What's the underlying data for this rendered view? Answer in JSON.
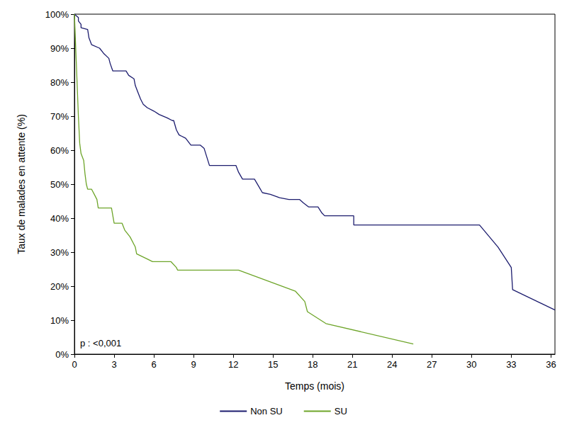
{
  "chart_data": {
    "type": "line",
    "x_label": "Temps (mois)",
    "y_label": "Taux de malades en attente (%)",
    "annotation": "p : <0,001",
    "xlim": [
      0,
      36.3
    ],
    "xticks": [
      0,
      3,
      6,
      9,
      12,
      15,
      18,
      21,
      24,
      27,
      30,
      33,
      36
    ],
    "ylim": [
      0,
      100
    ],
    "yticks": [
      {
        "value": 0,
        "label": "0%"
      },
      {
        "value": 10,
        "label": "10%"
      },
      {
        "value": 20,
        "label": "20%"
      },
      {
        "value": 30,
        "label": "30%"
      },
      {
        "value": 40,
        "label": "40%"
      },
      {
        "value": 50,
        "label": "50%"
      },
      {
        "value": 60,
        "label": "60%"
      },
      {
        "value": 70,
        "label": "70%"
      },
      {
        "value": 80,
        "label": "80%"
      },
      {
        "value": 90,
        "label": "90%"
      },
      {
        "value": 100,
        "label": "100%"
      }
    ],
    "grid": false,
    "legend": "bottom",
    "series": [
      {
        "name": "Non SU",
        "color": "#1c1c6e",
        "x": [
          0,
          0.3,
          0.3,
          0.5,
          0.5,
          1.0,
          1.1,
          1.3,
          1.9,
          2.2,
          2.6,
          2.7,
          2.9,
          3.9,
          4.1,
          4.5,
          4.6,
          4.8,
          5.0,
          5.2,
          5.5,
          6.0,
          6.4,
          7.0,
          7.4,
          7.5,
          7.7,
          7.9,
          8.4,
          8.8,
          9.5,
          9.8,
          10.0,
          10.2,
          12.2,
          12.4,
          12.7,
          13.6,
          13.9,
          14.2,
          14.8,
          15.5,
          16.2,
          17.0,
          17.3,
          17.7,
          18.4,
          18.7,
          18.9,
          21.1,
          21.1,
          30.6,
          32.0,
          33.0,
          33.1,
          36.3
        ],
        "values": [
          100,
          99,
          98,
          97,
          96,
          95.5,
          93,
          91,
          90,
          88.5,
          87,
          85.5,
          83.3,
          83.3,
          82,
          81,
          79,
          77,
          75,
          73.5,
          72.5,
          71.5,
          70.5,
          69.5,
          68.7,
          68.7,
          66,
          64.5,
          63.5,
          61.5,
          61.5,
          60.5,
          58,
          55.5,
          55.5,
          53.5,
          51.5,
          51.5,
          49.5,
          47.5,
          47,
          46,
          45.5,
          45.5,
          44.5,
          43.3,
          43.3,
          41.5,
          40.7,
          40.7,
          38,
          38,
          31.5,
          25.5,
          19,
          13
        ]
      },
      {
        "name": "SU",
        "color": "#6ea52a",
        "x": [
          0,
          0.1,
          0.2,
          0.3,
          0.4,
          0.5,
          0.7,
          0.8,
          0.9,
          1.0,
          1.3,
          1.5,
          1.7,
          1.8,
          2.8,
          3.0,
          3.6,
          3.8,
          4.2,
          4.6,
          4.7,
          5.5,
          5.9,
          7.3,
          7.7,
          7.8,
          12.4,
          16.7,
          17.4,
          17.6,
          19.0,
          25.6
        ],
        "values": [
          100,
          90,
          80,
          70,
          62,
          59,
          57,
          53,
          50,
          48.5,
          48.5,
          47,
          45.5,
          43,
          43,
          38.5,
          38.5,
          36.5,
          34.5,
          31.5,
          29.5,
          28,
          27.2,
          27.2,
          25.5,
          24.7,
          24.7,
          18.5,
          15.5,
          12.5,
          9,
          3
        ]
      }
    ]
  }
}
